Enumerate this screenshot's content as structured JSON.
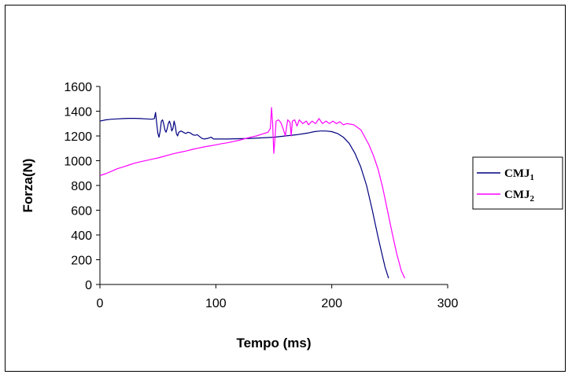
{
  "chart_data": {
    "type": "line",
    "title": "",
    "xlabel": "Tempo (ms)",
    "ylabel": "Forza(N)",
    "xlim": [
      0,
      300
    ],
    "ylim": [
      0,
      1600
    ],
    "xticks": [
      0,
      100,
      200,
      300
    ],
    "yticks": [
      0,
      200,
      400,
      600,
      800,
      1000,
      1200,
      1400,
      1600
    ],
    "grid": false,
    "legend_position": "right",
    "series": [
      {
        "name": "CMJ",
        "name_subscript": "1",
        "color": "#000080",
        "points": [
          [
            0,
            1320
          ],
          [
            5,
            1330
          ],
          [
            10,
            1335
          ],
          [
            15,
            1338
          ],
          [
            20,
            1340
          ],
          [
            25,
            1342
          ],
          [
            30,
            1342
          ],
          [
            35,
            1340
          ],
          [
            40,
            1338
          ],
          [
            45,
            1335
          ],
          [
            47,
            1340
          ],
          [
            48,
            1390
          ],
          [
            49,
            1300
          ],
          [
            50,
            1220
          ],
          [
            51,
            1190
          ],
          [
            52,
            1240
          ],
          [
            53,
            1320
          ],
          [
            54,
            1330
          ],
          [
            55,
            1300
          ],
          [
            56,
            1250
          ],
          [
            57,
            1230
          ],
          [
            58,
            1260
          ],
          [
            59,
            1300
          ],
          [
            60,
            1320
          ],
          [
            61,
            1290
          ],
          [
            62,
            1240
          ],
          [
            63,
            1260
          ],
          [
            64,
            1320
          ],
          [
            65,
            1280
          ],
          [
            66,
            1220
          ],
          [
            67,
            1200
          ],
          [
            68,
            1230
          ],
          [
            70,
            1240
          ],
          [
            72,
            1230
          ],
          [
            74,
            1220
          ],
          [
            76,
            1230
          ],
          [
            78,
            1225
          ],
          [
            80,
            1210
          ],
          [
            82,
            1205
          ],
          [
            84,
            1210
          ],
          [
            86,
            1195
          ],
          [
            88,
            1180
          ],
          [
            90,
            1175
          ],
          [
            93,
            1180
          ],
          [
            96,
            1190
          ],
          [
            98,
            1175
          ],
          [
            100,
            1175
          ],
          [
            110,
            1175
          ],
          [
            120,
            1178
          ],
          [
            130,
            1180
          ],
          [
            140,
            1185
          ],
          [
            150,
            1190
          ],
          [
            160,
            1200
          ],
          [
            170,
            1210
          ],
          [
            180,
            1225
          ],
          [
            185,
            1235
          ],
          [
            190,
            1240
          ],
          [
            195,
            1240
          ],
          [
            200,
            1235
          ],
          [
            205,
            1220
          ],
          [
            210,
            1190
          ],
          [
            215,
            1140
          ],
          [
            220,
            1060
          ],
          [
            225,
            950
          ],
          [
            230,
            800
          ],
          [
            235,
            600
          ],
          [
            240,
            380
          ],
          [
            243,
            260
          ],
          [
            246,
            140
          ],
          [
            248,
            80
          ],
          [
            249,
            50
          ]
        ]
      },
      {
        "name": "CMJ",
        "name_subscript": "2",
        "color": "#ff00ff",
        "points": [
          [
            0,
            880
          ],
          [
            5,
            895
          ],
          [
            10,
            915
          ],
          [
            15,
            935
          ],
          [
            20,
            950
          ],
          [
            25,
            965
          ],
          [
            30,
            980
          ],
          [
            35,
            992
          ],
          [
            40,
            1002
          ],
          [
            45,
            1012
          ],
          [
            50,
            1022
          ],
          [
            55,
            1035
          ],
          [
            60,
            1048
          ],
          [
            65,
            1060
          ],
          [
            70,
            1070
          ],
          [
            75,
            1080
          ],
          [
            80,
            1092
          ],
          [
            85,
            1102
          ],
          [
            90,
            1112
          ],
          [
            95,
            1120
          ],
          [
            100,
            1128
          ],
          [
            105,
            1138
          ],
          [
            110,
            1145
          ],
          [
            115,
            1155
          ],
          [
            120,
            1165
          ],
          [
            125,
            1178
          ],
          [
            130,
            1190
          ],
          [
            135,
            1200
          ],
          [
            140,
            1215
          ],
          [
            145,
            1230
          ],
          [
            147,
            1260
          ],
          [
            148,
            1430
          ],
          [
            149,
            1300
          ],
          [
            150,
            1060
          ],
          [
            151,
            1180
          ],
          [
            152,
            1320
          ],
          [
            154,
            1330
          ],
          [
            156,
            1310
          ],
          [
            158,
            1260
          ],
          [
            160,
            1200
          ],
          [
            161,
            1270
          ],
          [
            162,
            1330
          ],
          [
            164,
            1310
          ],
          [
            165,
            1200
          ],
          [
            166,
            1320
          ],
          [
            168,
            1330
          ],
          [
            170,
            1280
          ],
          [
            172,
            1330
          ],
          [
            175,
            1300
          ],
          [
            178,
            1320
          ],
          [
            180,
            1290
          ],
          [
            183,
            1320
          ],
          [
            186,
            1300
          ],
          [
            189,
            1340
          ],
          [
            192,
            1300
          ],
          [
            195,
            1320
          ],
          [
            198,
            1300
          ],
          [
            201,
            1320
          ],
          [
            204,
            1300
          ],
          [
            207,
            1315
          ],
          [
            210,
            1290
          ],
          [
            213,
            1300
          ],
          [
            216,
            1295
          ],
          [
            219,
            1290
          ],
          [
            222,
            1270
          ],
          [
            225,
            1250
          ],
          [
            228,
            1200
          ],
          [
            232,
            1130
          ],
          [
            236,
            1040
          ],
          [
            240,
            930
          ],
          [
            244,
            780
          ],
          [
            248,
            600
          ],
          [
            252,
            420
          ],
          [
            256,
            250
          ],
          [
            260,
            110
          ],
          [
            263,
            50
          ]
        ]
      }
    ]
  }
}
